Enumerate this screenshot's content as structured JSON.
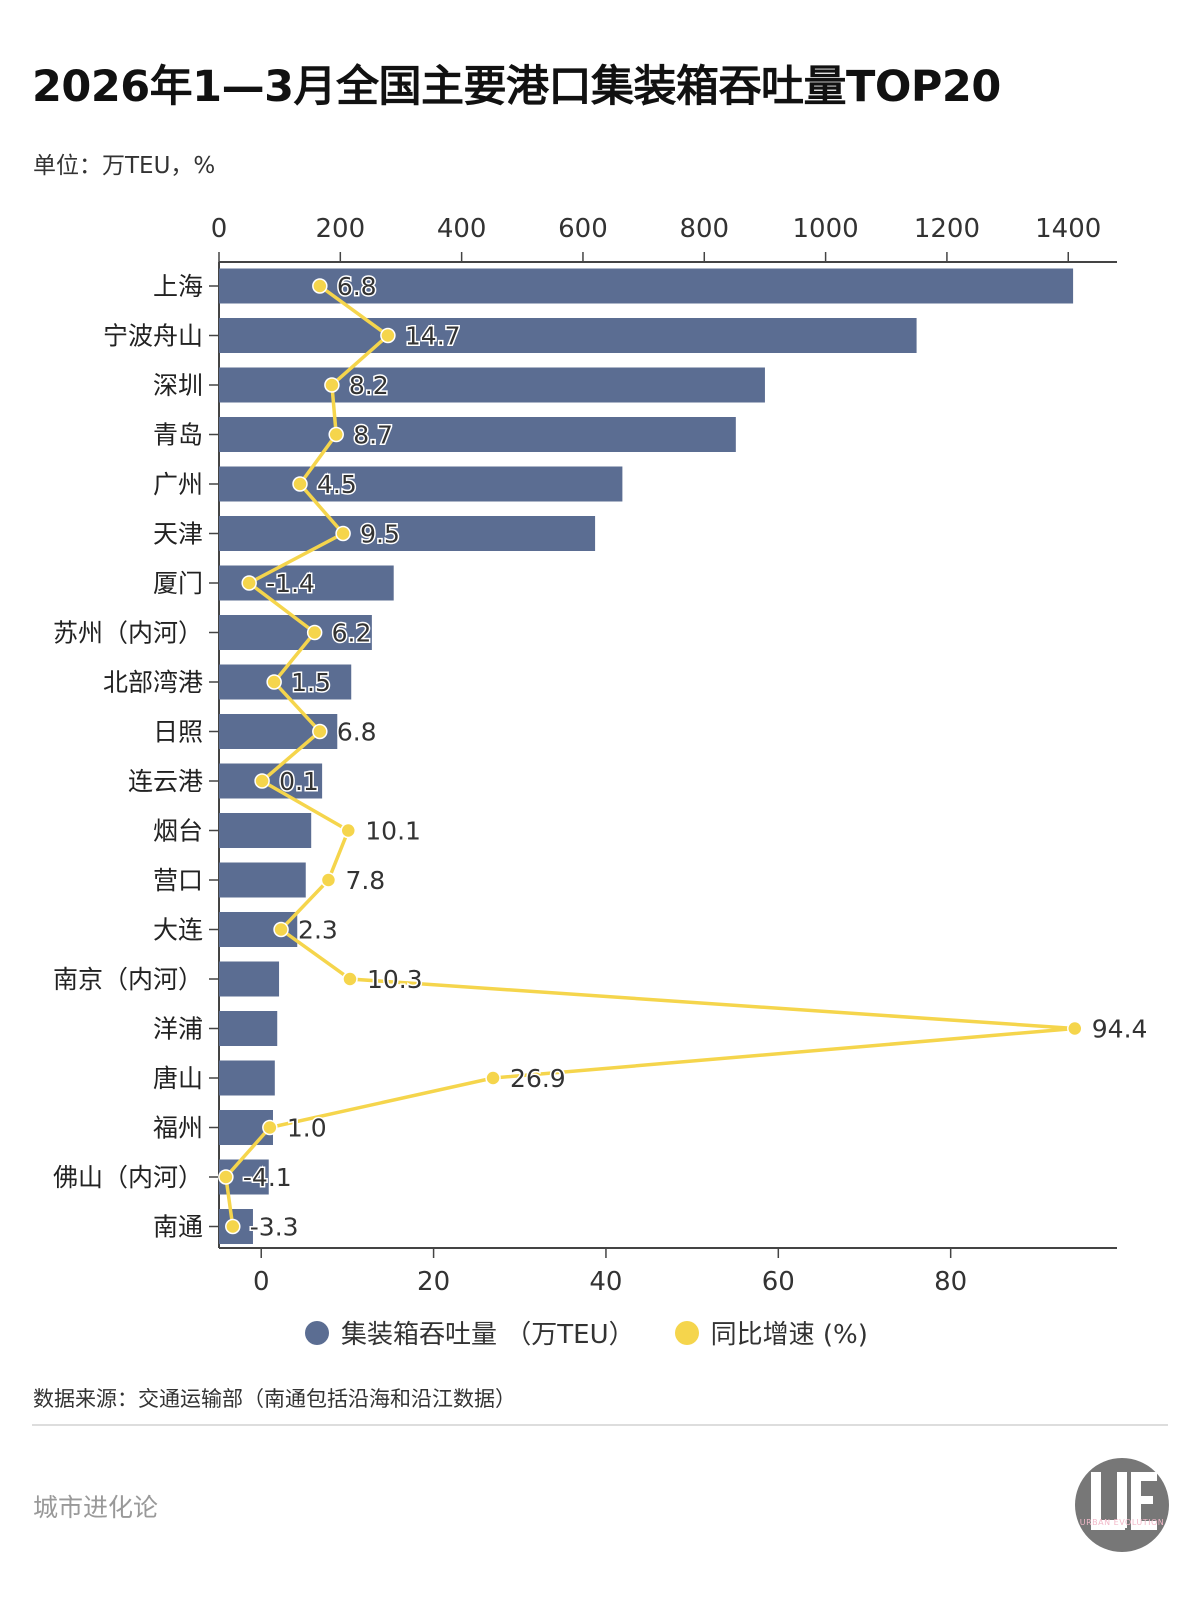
{
  "title": "2026年1—3月全国主要港口集装箱吞吐量TOP20",
  "unit": "单位：万TEU，%",
  "source": "数据来源：交通运输部（南通包括沿海和沿江数据）",
  "footer": "城市进化论",
  "logo_text": "URBAN EVOLUTION",
  "colors": {
    "bar": "#5b6d92",
    "line": "#f5d54c"
  },
  "chart_data": {
    "type": "bar",
    "orientation": "horizontal",
    "categories": [
      "上海",
      "宁波舟山",
      "深圳",
      "青岛",
      "广州",
      "天津",
      "厦门",
      "苏州（内河）",
      "北部湾港",
      "日照",
      "连云港",
      "烟台",
      "营口",
      "大连",
      "南京（内河）",
      "洋浦",
      "唐山",
      "福州",
      "佛山（内河）",
      "南通"
    ],
    "series": [
      {
        "name": "集装箱吞吐量 （万TEU）",
        "type": "bar",
        "axis": "top",
        "values": [
          1408,
          1150,
          900,
          852,
          665,
          620,
          288,
          252,
          218,
          195,
          170,
          152,
          143,
          129,
          99,
          96,
          92,
          89,
          82,
          56
        ]
      },
      {
        "name": "同比增速 (%)",
        "type": "line",
        "axis": "bottom",
        "values": [
          6.8,
          14.7,
          8.2,
          8.7,
          4.5,
          9.5,
          -1.4,
          6.2,
          1.5,
          6.8,
          0.1,
          10.1,
          7.8,
          2.3,
          10.3,
          94.4,
          26.9,
          1.0,
          -4.1,
          -3.3
        ]
      }
    ],
    "top_axis": {
      "ticks": [
        0,
        200,
        400,
        600,
        800,
        1000,
        1200,
        1400
      ],
      "range": [
        0,
        1475
      ]
    },
    "bottom_axis": {
      "ticks": [
        0,
        20,
        40,
        60,
        80
      ],
      "range": [
        -4.9,
        99.3
      ]
    },
    "legend_position": "bottom",
    "grid": false,
    "data_labels": [
      "6.8",
      "14.7",
      "8.2",
      "8.7",
      "4.5",
      "9.5",
      "-1.4",
      "6.2",
      "1.5",
      "6.8",
      "0.1",
      "10.1",
      "7.8",
      "2.3",
      "10.3",
      "94.4",
      "26.9",
      "1.0",
      "-4.1",
      "-3.3"
    ]
  }
}
